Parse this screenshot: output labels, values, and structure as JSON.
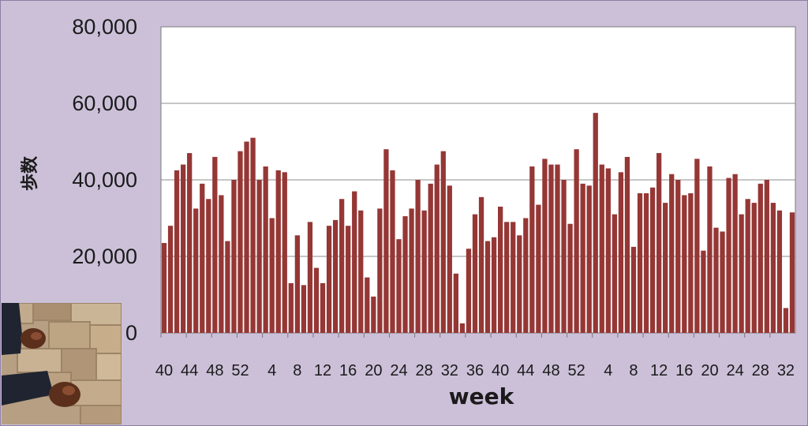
{
  "chart_data": {
    "type": "bar",
    "title": "",
    "xlabel": "week",
    "ylabel": "歩数",
    "ylim": [
      0,
      80000
    ],
    "ytick_labels": [
      "0",
      "20,000",
      "40,000",
      "60,000",
      "80,000"
    ],
    "ytick_values": [
      0,
      20000,
      40000,
      60000,
      80000
    ],
    "xtick_labels": [
      "40",
      "44",
      "48",
      "52",
      "4",
      "8",
      "12",
      "16",
      "20",
      "24",
      "28",
      "32",
      "36",
      "40",
      "44",
      "48",
      "52",
      "4",
      "8",
      "12",
      "16",
      "20",
      "24",
      "28",
      "32"
    ],
    "xtick_positions": [
      0,
      4,
      8,
      12,
      17,
      21,
      25,
      29,
      33,
      37,
      41,
      45,
      49,
      53,
      57,
      61,
      65,
      70,
      74,
      78,
      82,
      86,
      90,
      94,
      98
    ],
    "grid": true,
    "bar_color": "#953735",
    "plot_background": "#ffffff",
    "frame_background": "#ccc0d9",
    "values": [
      23500,
      28000,
      42500,
      44000,
      47000,
      32500,
      39000,
      35000,
      46000,
      36000,
      24000,
      40000,
      47500,
      50000,
      51000,
      40000,
      43500,
      30000,
      42500,
      42000,
      13000,
      25500,
      12500,
      29000,
      17000,
      13000,
      28000,
      29500,
      35000,
      28000,
      37000,
      32000,
      14500,
      9500,
      32500,
      48000,
      42500,
      24500,
      30500,
      32500,
      40000,
      32000,
      39000,
      44000,
      47500,
      38500,
      15500,
      2500,
      22000,
      31000,
      35500,
      24000,
      25000,
      33000,
      29000,
      29000,
      25500,
      30000,
      43500,
      33500,
      45500,
      44000,
      44000,
      40000,
      28500,
      48000,
      39000,
      38500,
      57500,
      44000,
      43000,
      31000,
      42000,
      46000,
      22500,
      36500,
      36500,
      38000,
      47000,
      34000,
      41500,
      40000,
      36000,
      36500,
      45500,
      21500,
      43500,
      27500,
      26500,
      40500,
      41500,
      31000,
      35000,
      34000,
      39000,
      40000,
      34000,
      32000,
      6500,
      31500
    ]
  },
  "photo": {
    "icon": "shoes-on-cobblestone-photo"
  }
}
